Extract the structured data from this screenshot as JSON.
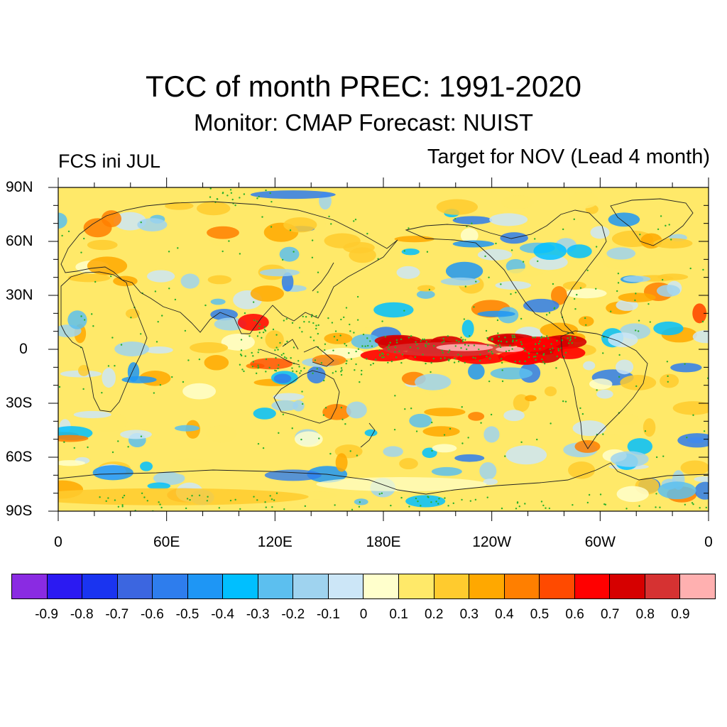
{
  "title": "TCC of month PREC: 1991-2020",
  "subtitle": "Monitor: CMAP   Forecast: NUIST",
  "left_label": "FCS ini JUL",
  "right_label": "Target for NOV (Lead 4 month)",
  "lat_labels": [
    "90N",
    "60N",
    "30N",
    "0",
    "30S",
    "60S",
    "90S"
  ],
  "lon_labels": [
    "0",
    "60E",
    "120E",
    "180E",
    "120W",
    "60W",
    "0"
  ],
  "colorbar": {
    "colors": [
      "#8a2be2",
      "#2b1af2",
      "#1a34f0",
      "#3c66e0",
      "#2e7ded",
      "#1e96f5",
      "#00bfff",
      "#5cbfef",
      "#9fd3ef",
      "#cce6f7",
      "#ffffcc",
      "#ffe969",
      "#ffcb2e",
      "#ffa800",
      "#ff7f00",
      "#ff4a00",
      "#ff0000",
      "#d60000",
      "#d63232",
      "#ffb0b0"
    ],
    "labels": [
      "-0.9",
      "-0.8",
      "-0.7",
      "-0.6",
      "-0.5",
      "-0.4",
      "-0.3",
      "-0.2",
      "-0.1",
      "0",
      "0.1",
      "0.2",
      "0.3",
      "0.4",
      "0.5",
      "0.6",
      "0.7",
      "0.8",
      "0.9"
    ]
  },
  "map": {
    "projection": "cylindrical equidistant",
    "lon_range": [
      0,
      360
    ],
    "lat_range": [
      -90,
      90
    ],
    "stippling": "green dots mark significant correlation",
    "stipple_color": "#2ab02a"
  }
}
